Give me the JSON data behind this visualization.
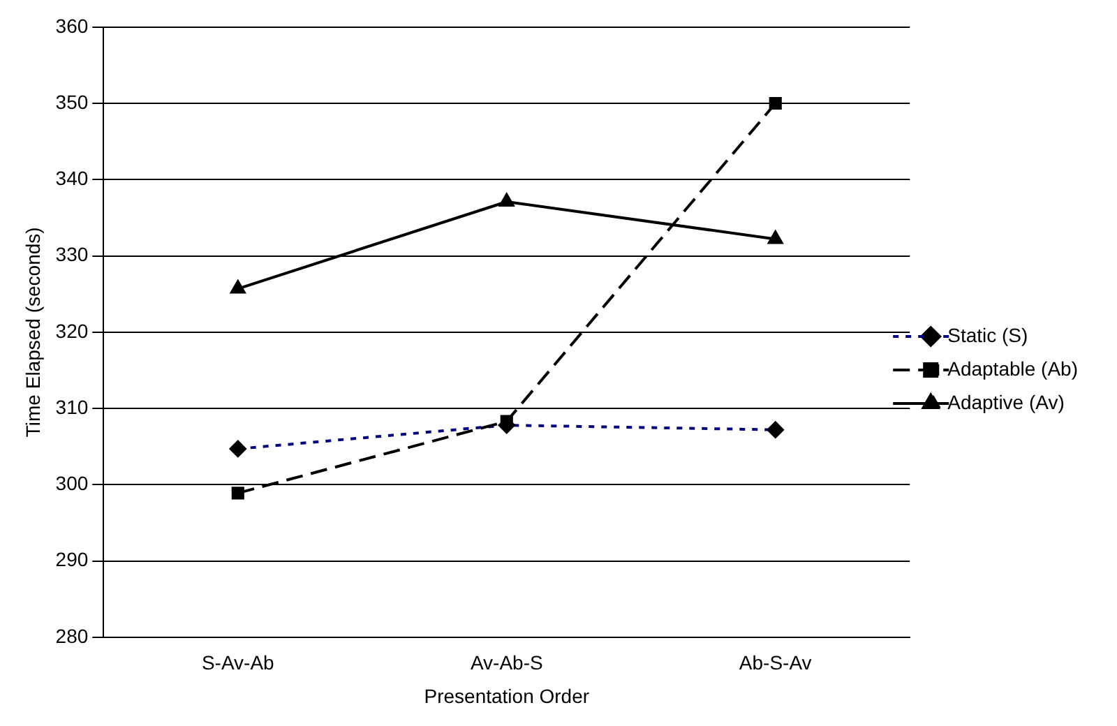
{
  "chart_data": {
    "type": "line",
    "xlabel": "Presentation Order",
    "ylabel": "Time Elapsed (seconds)",
    "categories": [
      "S-Av-Ab",
      "Av-Ab-S",
      "Ab-S-Av"
    ],
    "series": [
      {
        "name": "Static (S)",
        "color": "#000080",
        "values": [
          304.7,
          307.8,
          307.2
        ],
        "marker": "diamond",
        "line_style": "dotted"
      },
      {
        "name": "Adaptable (Ab)",
        "color": "#000000",
        "values": [
          298.9,
          308.3,
          350
        ],
        "marker": "square",
        "line_style": "dashed"
      },
      {
        "name": "Adaptive (Av)",
        "color": "#000000",
        "values": [
          325.7,
          337.1,
          332.2
        ],
        "marker": "triangle",
        "line_style": "solid"
      }
    ],
    "ylim": [
      280,
      360
    ],
    "yticks": [
      280,
      290,
      300,
      310,
      320,
      330,
      340,
      350,
      360
    ],
    "grid": "y",
    "legend": "right"
  }
}
